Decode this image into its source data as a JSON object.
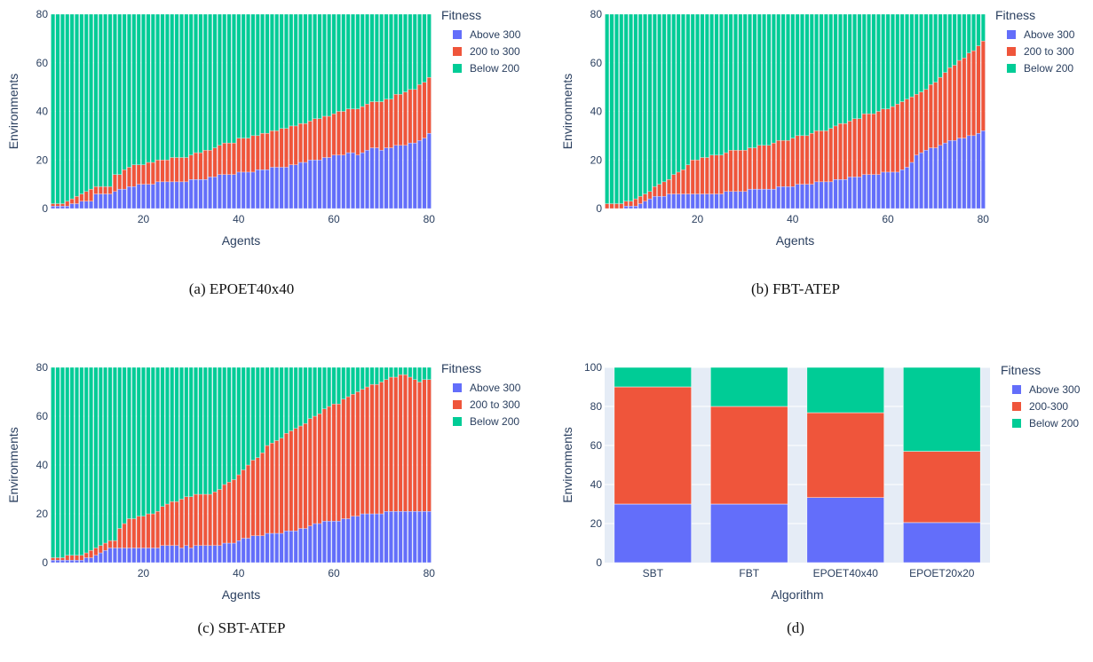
{
  "colors": {
    "above": "#636efa",
    "mid": "#ef553b",
    "below": "#00cc96",
    "plot_bg": "#e5ecf6",
    "grid": "#ffffff",
    "text": "#2a3f5f"
  },
  "chart_data": [
    {
      "id": "a",
      "type": "bar",
      "stacked": true,
      "caption": "(a) EPOET40x40",
      "xlabel": "Agents",
      "ylabel": "Environments",
      "legend_title": "Fitness",
      "legend_position": "right",
      "xlim": [
        0.5,
        80.5
      ],
      "ylim": [
        0,
        80
      ],
      "xticks": [
        20,
        40,
        60,
        80
      ],
      "yticks": [
        0,
        20,
        40,
        60,
        80
      ],
      "total": 80,
      "series": [
        {
          "name": "Above 300",
          "values": [
            1,
            1,
            1,
            1,
            2,
            2,
            3,
            3,
            3,
            6,
            6,
            6,
            6,
            7,
            8,
            8,
            9,
            9,
            10,
            10,
            10,
            10,
            11,
            11,
            11,
            11,
            11,
            11,
            11,
            12,
            12,
            12,
            12,
            13,
            13,
            14,
            14,
            14,
            14,
            15,
            15,
            15,
            15,
            16,
            16,
            16,
            17,
            17,
            17,
            17,
            18,
            18,
            19,
            19,
            20,
            20,
            20,
            21,
            21,
            22,
            22,
            22,
            23,
            23,
            22,
            23,
            24,
            25,
            25,
            24,
            25,
            25,
            26,
            26,
            26,
            27,
            27,
            28,
            29,
            31
          ]
        },
        {
          "name": "200 to 300",
          "values": [
            1,
            1,
            1,
            2,
            2,
            3,
            3,
            4,
            5,
            3,
            3,
            3,
            3,
            7,
            6,
            8,
            8,
            9,
            8,
            8,
            9,
            9,
            9,
            9,
            9,
            10,
            10,
            10,
            10,
            10,
            11,
            11,
            12,
            11,
            12,
            12,
            13,
            13,
            13,
            14,
            14,
            14,
            15,
            14,
            15,
            15,
            15,
            15,
            16,
            16,
            16,
            16,
            16,
            16,
            16,
            17,
            17,
            17,
            17,
            17,
            18,
            18,
            18,
            18,
            19,
            19,
            19,
            19,
            19,
            20,
            20,
            20,
            21,
            21,
            22,
            22,
            22,
            23,
            23,
            23
          ]
        }
      ]
    },
    {
      "id": "b",
      "type": "bar",
      "stacked": true,
      "caption": "(b) FBT-ATEP",
      "xlabel": "Agents",
      "ylabel": "Environments",
      "legend_title": "Fitness",
      "legend_position": "right",
      "xlim": [
        0.5,
        80.5
      ],
      "ylim": [
        0,
        80
      ],
      "xticks": [
        20,
        40,
        60,
        80
      ],
      "yticks": [
        0,
        20,
        40,
        60,
        80
      ],
      "total": 80,
      "series": [
        {
          "name": "Above 300",
          "values": [
            0,
            0,
            0,
            0,
            1,
            1,
            1,
            2,
            3,
            4,
            5,
            5,
            5,
            6,
            6,
            6,
            6,
            6,
            6,
            6,
            6,
            6,
            6,
            6,
            6,
            7,
            7,
            7,
            7,
            7,
            8,
            8,
            8,
            8,
            8,
            8,
            9,
            9,
            9,
            9,
            10,
            10,
            10,
            10,
            11,
            11,
            11,
            11,
            12,
            12,
            12,
            13,
            13,
            13,
            14,
            14,
            14,
            14,
            15,
            15,
            15,
            15,
            16,
            17,
            19,
            22,
            23,
            24,
            25,
            25,
            26,
            27,
            28,
            28,
            29,
            29,
            30,
            30,
            31,
            32
          ]
        },
        {
          "name": "200 to 300",
          "values": [
            2,
            2,
            2,
            2,
            2,
            2,
            3,
            3,
            3,
            3,
            4,
            5,
            6,
            6,
            8,
            9,
            10,
            12,
            14,
            14,
            15,
            15,
            16,
            16,
            16,
            16,
            17,
            17,
            17,
            17,
            17,
            17,
            18,
            18,
            18,
            19,
            19,
            19,
            19,
            20,
            20,
            20,
            20,
            21,
            21,
            21,
            21,
            22,
            22,
            23,
            23,
            23,
            24,
            24,
            25,
            25,
            25,
            26,
            26,
            26,
            27,
            28,
            28,
            28,
            27,
            25,
            25,
            25,
            26,
            27,
            28,
            29,
            30,
            31,
            32,
            33,
            34,
            35,
            36,
            37
          ]
        }
      ]
    },
    {
      "id": "c",
      "type": "bar",
      "stacked": true,
      "caption": "(c) SBT-ATEP",
      "xlabel": "Agents",
      "ylabel": "Environments",
      "legend_title": "Fitness",
      "legend_position": "right",
      "xlim": [
        0.5,
        80.5
      ],
      "ylim": [
        0,
        80
      ],
      "xticks": [
        20,
        40,
        60,
        80
      ],
      "yticks": [
        0,
        20,
        40,
        60,
        80
      ],
      "total": 80,
      "series": [
        {
          "name": "Above 300",
          "values": [
            1,
            1,
            1,
            1,
            1,
            1,
            1,
            2,
            2,
            3,
            4,
            5,
            6,
            6,
            6,
            6,
            6,
            6,
            6,
            6,
            6,
            6,
            6,
            7,
            7,
            7,
            7,
            6,
            7,
            6,
            7,
            7,
            7,
            7,
            7,
            7,
            8,
            8,
            8,
            9,
            10,
            10,
            11,
            11,
            11,
            12,
            12,
            12,
            12,
            13,
            13,
            13,
            14,
            14,
            15,
            16,
            16,
            17,
            17,
            17,
            17,
            18,
            18,
            19,
            19,
            20,
            20,
            20,
            20,
            20,
            21,
            21,
            21,
            21,
            21,
            21,
            21,
            21,
            21,
            21
          ]
        },
        {
          "name": "200 to 300",
          "values": [
            1,
            1,
            1,
            2,
            2,
            2,
            2,
            2,
            3,
            3,
            3,
            3,
            3,
            3,
            8,
            10,
            12,
            12,
            13,
            13,
            14,
            14,
            15,
            16,
            17,
            18,
            18,
            20,
            20,
            21,
            21,
            21,
            21,
            21,
            22,
            23,
            24,
            25,
            26,
            27,
            28,
            30,
            31,
            32,
            34,
            36,
            37,
            38,
            39,
            40,
            41,
            42,
            42,
            43,
            44,
            44,
            45,
            46,
            47,
            48,
            48,
            49,
            50,
            50,
            51,
            51,
            52,
            53,
            53,
            54,
            54,
            55,
            55,
            56,
            56,
            55,
            54,
            53,
            54,
            54
          ]
        }
      ]
    },
    {
      "id": "d",
      "type": "bar",
      "stacked": true,
      "caption": "(d)",
      "xlabel": "Algorithm",
      "ylabel": "Environments",
      "legend_title": "Fitness",
      "legend_position": "right",
      "ylim": [
        0,
        100
      ],
      "yticks": [
        0,
        20,
        40,
        60,
        80,
        100
      ],
      "categories": [
        "SBT",
        "FBT",
        "EPOET40x40",
        "EPOET20x20"
      ],
      "series": [
        {
          "name": "Above 300",
          "values": [
            30,
            30,
            33.3,
            20.5
          ]
        },
        {
          "name": "200-300",
          "values": [
            60,
            50,
            43.5,
            36.5
          ]
        },
        {
          "name": "Below 200",
          "values": [
            10,
            20,
            23.2,
            43
          ]
        }
      ]
    }
  ]
}
